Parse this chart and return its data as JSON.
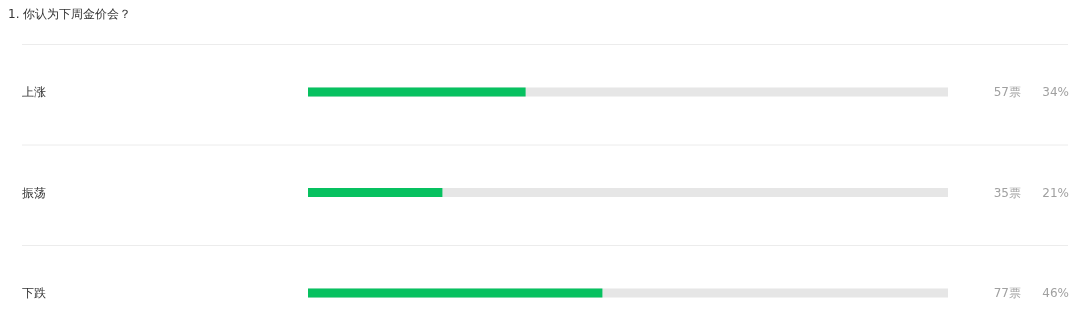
{
  "chart_data": {
    "type": "bar",
    "orientation": "horizontal",
    "title": "1. 你认为下周金价会？",
    "categories": [
      "上涨",
      "振荡",
      "下跌"
    ],
    "values": [
      34,
      21,
      46
    ],
    "value_labels": [
      "34%",
      "21%",
      "46%"
    ],
    "annotations": [
      "57票",
      "35票",
      "77票"
    ],
    "color": "#07c160",
    "xlim": [
      0,
      100
    ]
  }
}
